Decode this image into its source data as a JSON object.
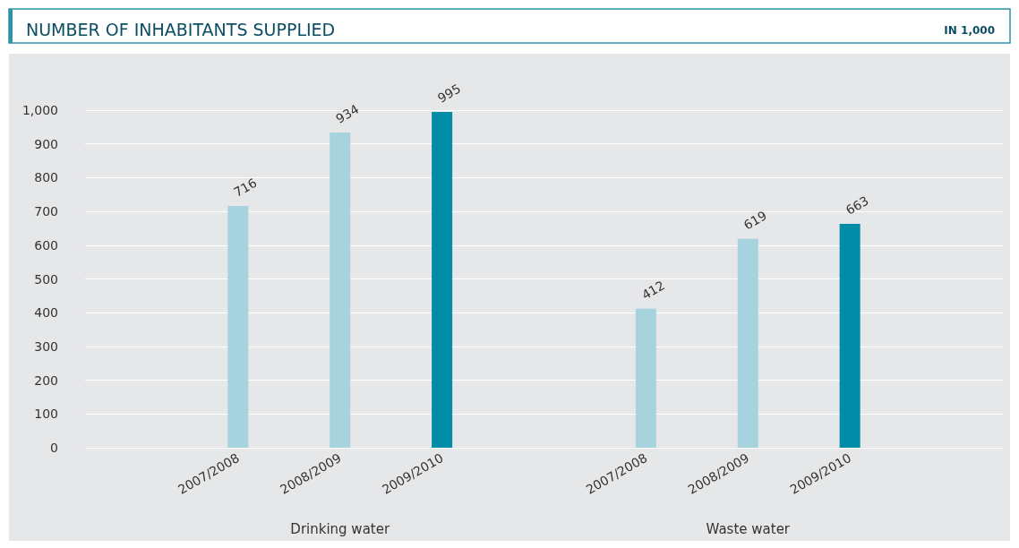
{
  "chart_data": {
    "type": "bar",
    "title": "NUMBER OF INHABITANTS SUPPLIED",
    "subtitle": "IN 1,000",
    "categories": [
      null,
      "2007/2008",
      "2008/2009",
      "2009/2010",
      null,
      "2007/2008",
      "2008/2009",
      "2009/2010",
      null
    ],
    "values": [
      null,
      716,
      934,
      995,
      null,
      412,
      619,
      663,
      null
    ],
    "colors": [
      "#a6d3de",
      "#a6d3de",
      "#a6d3de",
      "#008ca6",
      "#a6d3de",
      "#a6d3de",
      "#a6d3de",
      "#008ca6",
      "#a6d3de"
    ],
    "annotations": [
      "Drinking water",
      "Waste water"
    ],
    "ylim": [
      0,
      1000
    ],
    "yticks": [
      0,
      100,
      200,
      300,
      400,
      500,
      600,
      700,
      800,
      900,
      {
        "value": 1000,
        "label": "1,000"
      }
    ],
    "grid": "y",
    "data_labels": true
  }
}
